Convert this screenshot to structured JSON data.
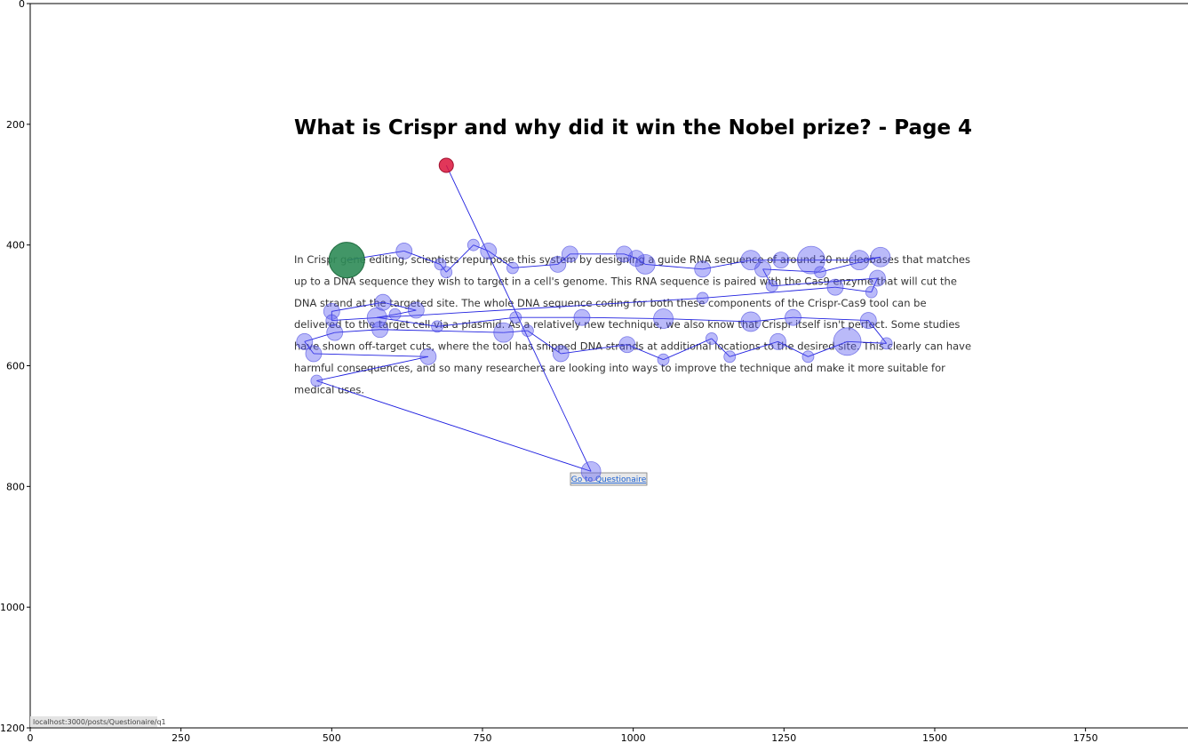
{
  "chart_data": {
    "type": "scatter",
    "title": "",
    "xlabel": "",
    "ylabel": "",
    "xlim": [
      0,
      1920
    ],
    "ylim": [
      1200,
      0
    ],
    "x_ticks": [
      0,
      250,
      500,
      750,
      1000,
      1250,
      1500,
      1750
    ],
    "y_ticks": [
      0,
      200,
      400,
      600,
      800,
      1000,
      1200
    ],
    "background_screenshot": {
      "page_title": "What is Crispr and why did it win the Nobel prize? - Page 4",
      "paragraph_lines": [
        "In Crispr gene editing, scientists repurpose this system by designing a guide RNA sequence of around 20 nucleobases that matches",
        "up to a DNA sequence they wish to target in a cell's genome. This RNA sequence is paired with the Cas9 enzyme that will cut the",
        "DNA strand at the targeted site. The whole DNA sequence coding for both these components of the Crispr-Cas9 tool can be",
        "delivered to the target cell via a plasmid. As a relatively new technique, we also know that Crispr itself isn't perfect. Some studies",
        "have shown off-target cuts, where the tool has snipped DNA strands at additional locations to the desired site. This clearly can have",
        "harmful consequences, and so many researchers are looking into ways to improve the technique and make it more suitable for",
        "medical uses."
      ],
      "button_label": "Go to Questionaire",
      "status_url": "localhost:3000/posts/Questionaire/q1"
    },
    "start_point": {
      "x": 690,
      "y": 268,
      "color": "#dc143c"
    },
    "end_point": {
      "x": 525,
      "y": 425,
      "color": "#2e8b57"
    },
    "fixations": [
      {
        "x": 690,
        "y": 268,
        "r": 1
      },
      {
        "x": 930,
        "y": 775,
        "r": 3
      },
      {
        "x": 475,
        "y": 625,
        "r": 1
      },
      {
        "x": 660,
        "y": 585,
        "r": 2
      },
      {
        "x": 470,
        "y": 580,
        "r": 2
      },
      {
        "x": 455,
        "y": 560,
        "r": 2
      },
      {
        "x": 505,
        "y": 545,
        "r": 2
      },
      {
        "x": 580,
        "y": 540,
        "r": 2
      },
      {
        "x": 785,
        "y": 545,
        "r": 3
      },
      {
        "x": 825,
        "y": 542,
        "r": 1
      },
      {
        "x": 880,
        "y": 580,
        "r": 2
      },
      {
        "x": 990,
        "y": 565,
        "r": 2
      },
      {
        "x": 1050,
        "y": 590,
        "r": 1
      },
      {
        "x": 1130,
        "y": 555,
        "r": 1
      },
      {
        "x": 1160,
        "y": 585,
        "r": 1
      },
      {
        "x": 1240,
        "y": 560,
        "r": 2
      },
      {
        "x": 1290,
        "y": 585,
        "r": 1
      },
      {
        "x": 1355,
        "y": 560,
        "r": 4
      },
      {
        "x": 1420,
        "y": 563,
        "r": 1
      },
      {
        "x": 1390,
        "y": 525,
        "r": 2
      },
      {
        "x": 1265,
        "y": 520,
        "r": 2
      },
      {
        "x": 1195,
        "y": 527,
        "r": 3
      },
      {
        "x": 1050,
        "y": 522,
        "r": 3
      },
      {
        "x": 915,
        "y": 520,
        "r": 2
      },
      {
        "x": 805,
        "y": 520,
        "r": 1
      },
      {
        "x": 675,
        "y": 535,
        "r": 1
      },
      {
        "x": 575,
        "y": 520,
        "r": 3
      },
      {
        "x": 605,
        "y": 515,
        "r": 1
      },
      {
        "x": 640,
        "y": 508,
        "r": 2
      },
      {
        "x": 585,
        "y": 495,
        "r": 2
      },
      {
        "x": 500,
        "y": 510,
        "r": 2
      },
      {
        "x": 500,
        "y": 525,
        "r": 1
      },
      {
        "x": 1115,
        "y": 488,
        "r": 1
      },
      {
        "x": 1335,
        "y": 470,
        "r": 2
      },
      {
        "x": 1395,
        "y": 478,
        "r": 1
      },
      {
        "x": 1405,
        "y": 455,
        "r": 2
      },
      {
        "x": 1230,
        "y": 468,
        "r": 1
      },
      {
        "x": 1215,
        "y": 440,
        "r": 2
      },
      {
        "x": 1310,
        "y": 445,
        "r": 1
      },
      {
        "x": 1410,
        "y": 420,
        "r": 3
      },
      {
        "x": 1375,
        "y": 425,
        "r": 3
      },
      {
        "x": 1295,
        "y": 425,
        "r": 4
      },
      {
        "x": 1245,
        "y": 425,
        "r": 2
      },
      {
        "x": 1195,
        "y": 425,
        "r": 3
      },
      {
        "x": 1115,
        "y": 440,
        "r": 2
      },
      {
        "x": 1020,
        "y": 432,
        "r": 3
      },
      {
        "x": 1005,
        "y": 422,
        "r": 2
      },
      {
        "x": 985,
        "y": 415,
        "r": 2
      },
      {
        "x": 895,
        "y": 415,
        "r": 2
      },
      {
        "x": 875,
        "y": 432,
        "r": 2
      },
      {
        "x": 800,
        "y": 438,
        "r": 1
      },
      {
        "x": 760,
        "y": 410,
        "r": 2
      },
      {
        "x": 735,
        "y": 400,
        "r": 1
      },
      {
        "x": 690,
        "y": 445,
        "r": 1
      },
      {
        "x": 680,
        "y": 432,
        "r": 1
      },
      {
        "x": 620,
        "y": 410,
        "r": 2
      },
      {
        "x": 525,
        "y": 425,
        "r": 4
      }
    ],
    "scanpath_order": "fixations array order",
    "grid": false,
    "legend": "none"
  }
}
